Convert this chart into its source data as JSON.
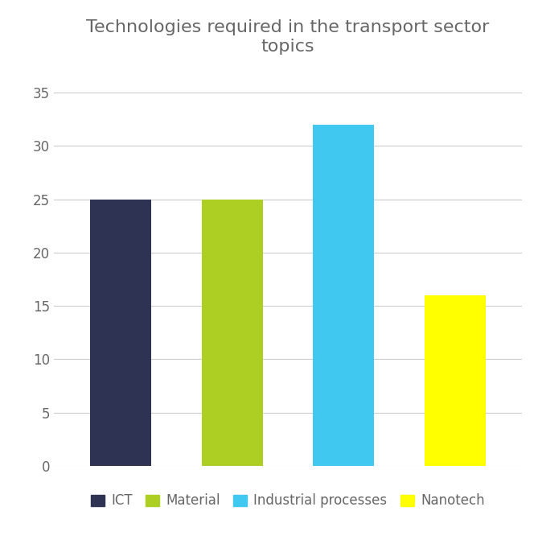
{
  "title": "Technologies required in the transport sector\ntopics",
  "categories": [
    "ICT",
    "Material",
    "Industrial processes",
    "Nanotech"
  ],
  "values": [
    25,
    25,
    32,
    16
  ],
  "bar_colors": [
    "#2E3354",
    "#ADCF23",
    "#40C8F0",
    "#FFFF00"
  ],
  "ylim": [
    0,
    37
  ],
  "yticks": [
    0,
    5,
    10,
    15,
    20,
    25,
    30,
    35
  ],
  "title_fontsize": 16,
  "tick_fontsize": 12,
  "legend_fontsize": 12,
  "background_color": "#ffffff",
  "grid_color": "#cccccc",
  "title_color": "#666666",
  "tick_color": "#666666",
  "legend_color": "#666666"
}
